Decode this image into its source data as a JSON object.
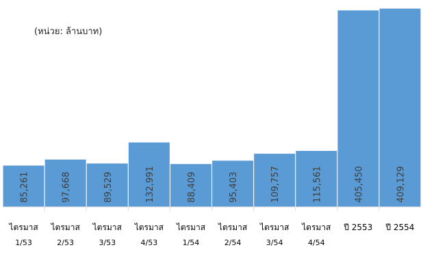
{
  "chart_data": {
    "type": "bar",
    "unit_note": "(หน่วย: ล้านบาท)",
    "categories": [
      [
        "ไตรมาส",
        "1/53"
      ],
      [
        "ไตรมาส",
        "2/53"
      ],
      [
        "ไตรมาส",
        "3/53"
      ],
      [
        "ไตรมาส",
        "4/53"
      ],
      [
        "ไตรมาส",
        "1/54"
      ],
      [
        "ไตรมาส",
        "2/54"
      ],
      [
        "ไตรมาส",
        "3/54"
      ],
      [
        "ไตรมาส",
        "4/54"
      ],
      [
        "ปี 2553"
      ],
      [
        "ปี 2554"
      ]
    ],
    "values": [
      85261,
      97668,
      89529,
      132991,
      88409,
      95403,
      109757,
      115561,
      405450,
      409129
    ],
    "data_labels": [
      "85,261",
      "97,668",
      "89,529",
      "132,991",
      "88,409",
      "95,403",
      "109,757",
      "115,561",
      "405,450",
      "409,129"
    ],
    "ylim": [
      0,
      410000
    ],
    "grid": false,
    "legend": "none",
    "colors": {
      "bar": "#5b9bd5",
      "axis": "#d9d9d9",
      "label": "#000000",
      "data_label": "#3d3d3d"
    }
  }
}
